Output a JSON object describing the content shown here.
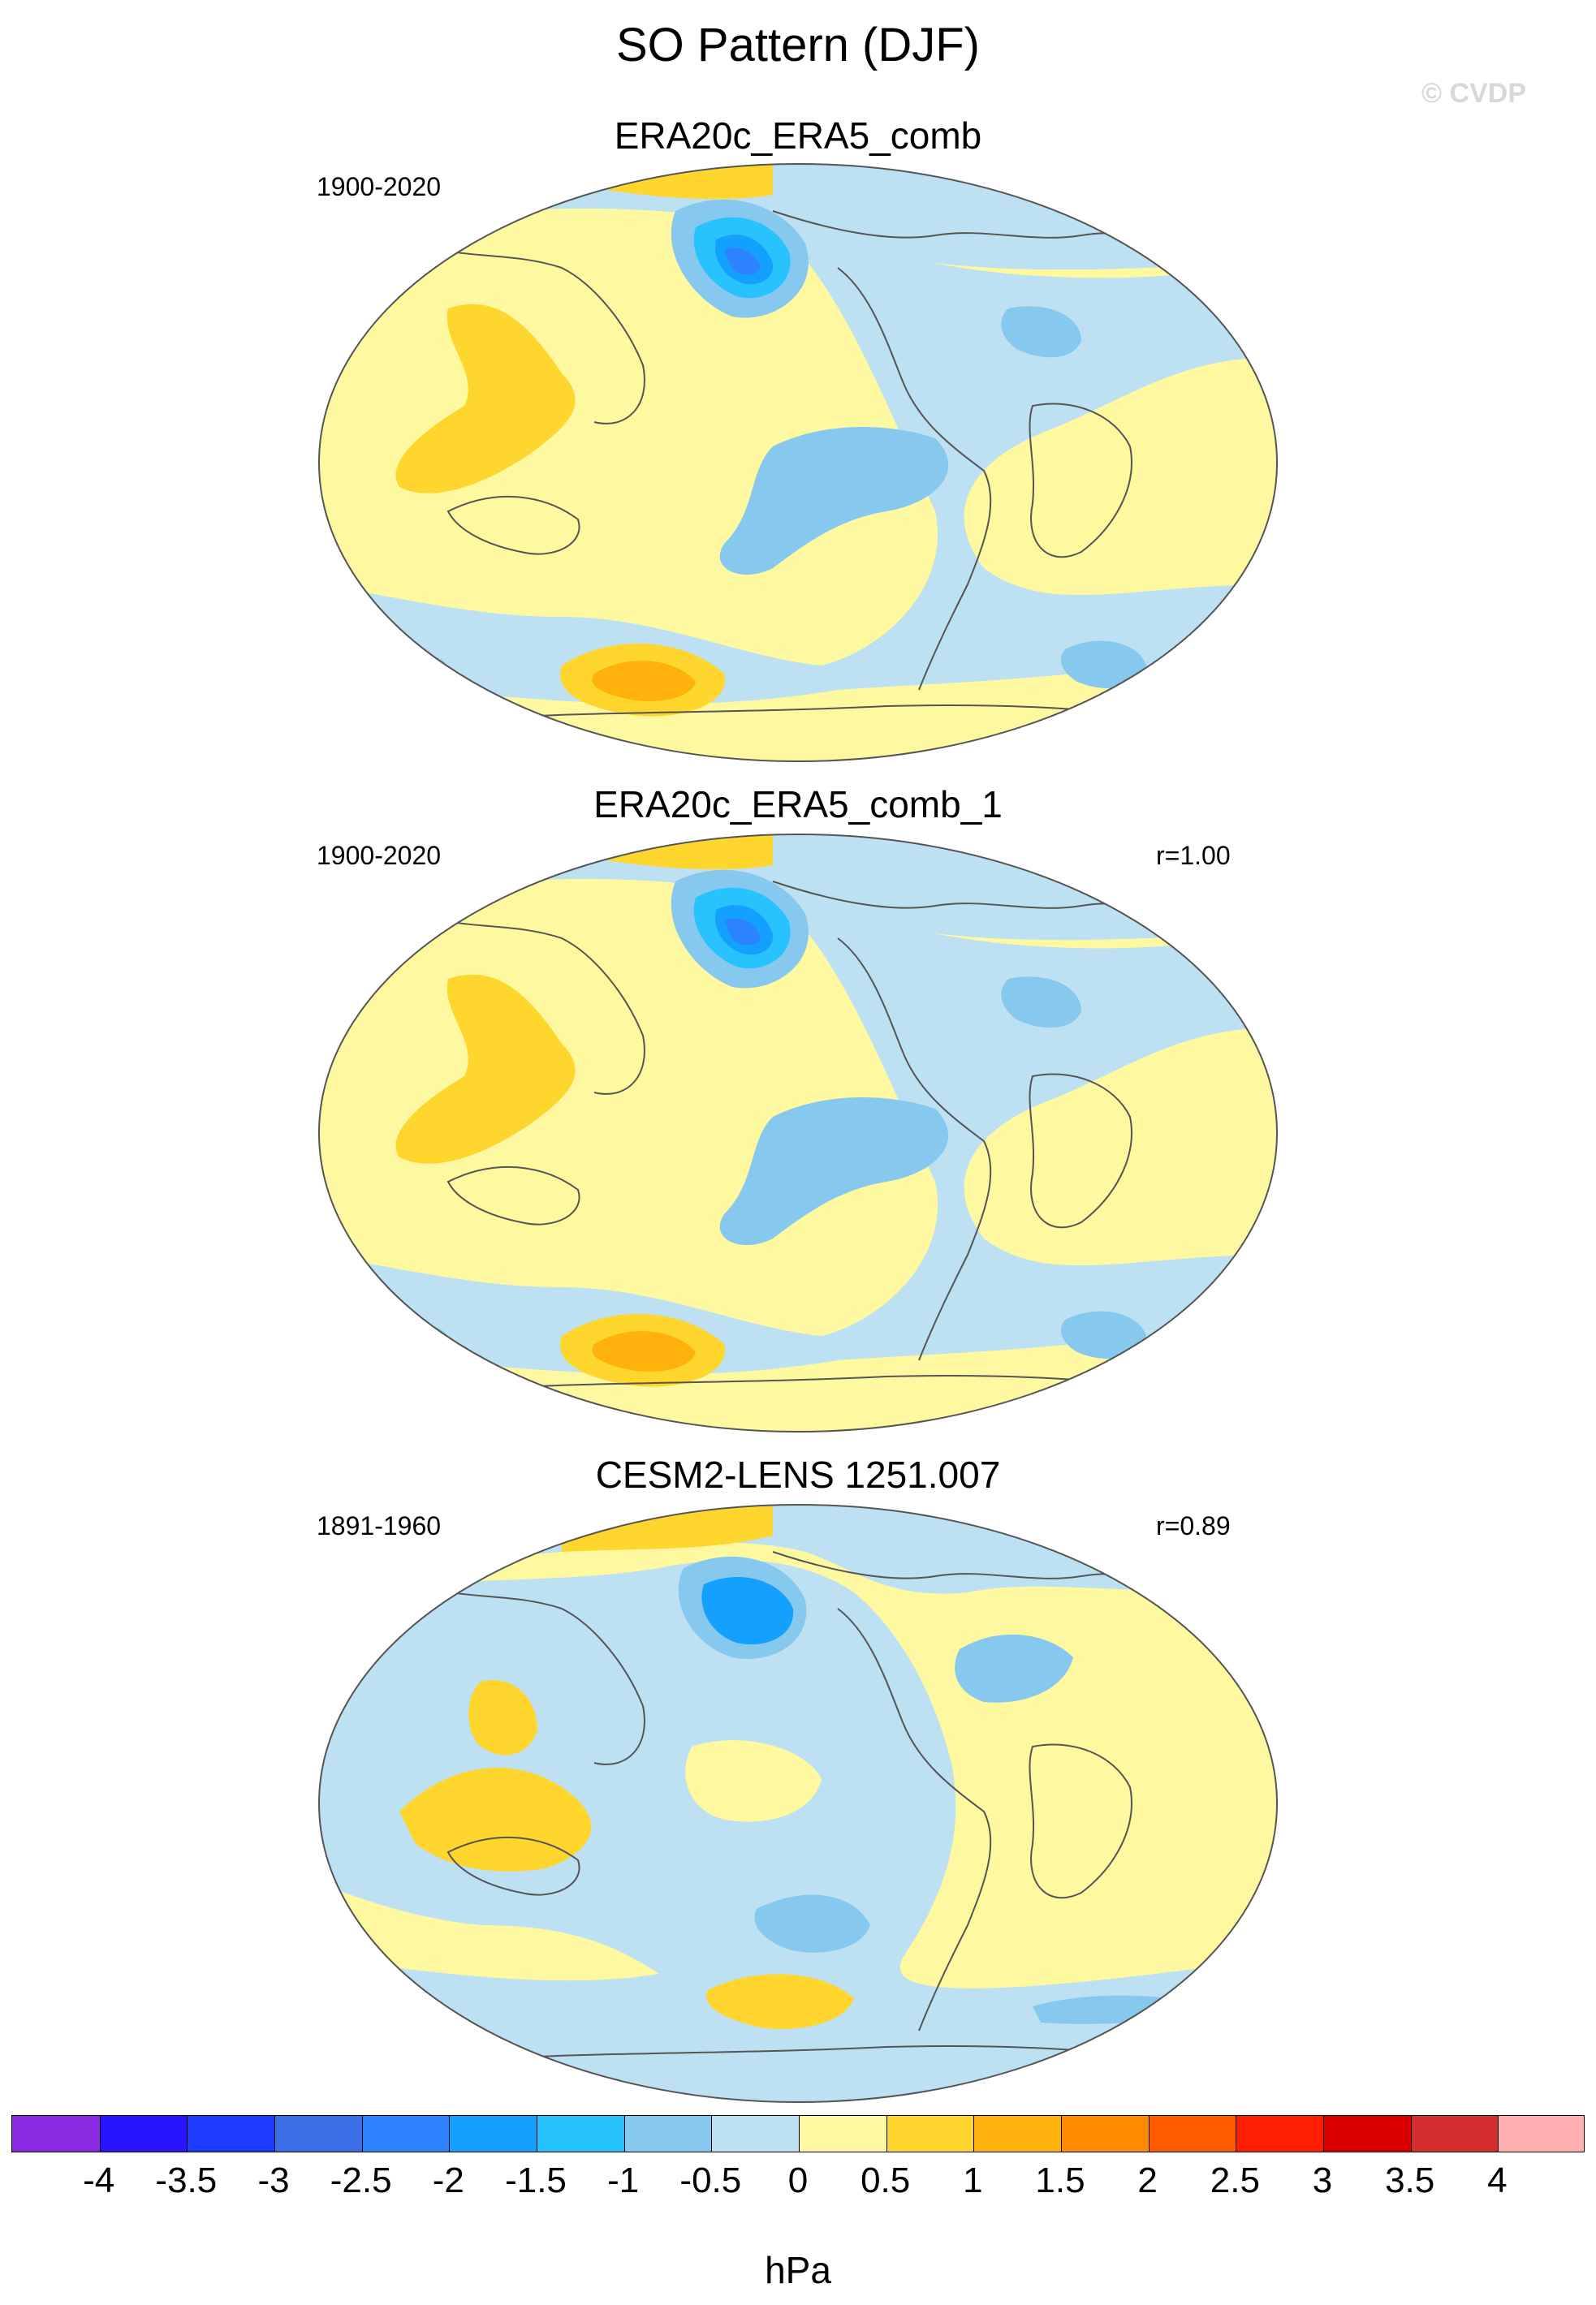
{
  "figure": {
    "title": "SO Pattern (DJF)",
    "watermark": "© CVDP"
  },
  "panels": [
    {
      "title": "ERA20c_ERA5_comb",
      "period": "1900-2020",
      "correlation": ""
    },
    {
      "title": "ERA20c_ERA5_comb_1",
      "period": "1900-2020",
      "correlation": "r=1.00"
    },
    {
      "title": "CESM2-LENS 1251.007",
      "period": "1891-1960",
      "correlation": "r=0.89"
    }
  ],
  "colorbar": {
    "unit": "hPa",
    "labels": [
      "-4",
      "-3.5",
      "-3",
      "-2.5",
      "-2",
      "-1.5",
      "-1",
      "-0.5",
      "0",
      "0.5",
      "1",
      "1.5",
      "2",
      "2.5",
      "3",
      "3.5",
      "4"
    ],
    "colors": [
      "#8a2be2",
      "#2814ff",
      "#1e3cff",
      "#3c6ee6",
      "#2d82ff",
      "#14a0ff",
      "#28c3ff",
      "#87c8ee",
      "#bde0f3",
      "#fef9a0",
      "#ffd62e",
      "#ffb20c",
      "#ff8b00",
      "#ff5c00",
      "#ff1e00",
      "#da0000",
      "#d32f2f",
      "#ffb0b0"
    ]
  },
  "map_style": {
    "background": "#fef9a0",
    "neg_light": "#bde0f3",
    "neg_mid": "#87c8ee",
    "neg_strong": "#28c3ff",
    "neg_deep": "#14a0ff",
    "neg_core": "#2d82ff",
    "pos_light": "#ffd62e",
    "pos_mid": "#ffb20c",
    "coastline": "#555555"
  }
}
